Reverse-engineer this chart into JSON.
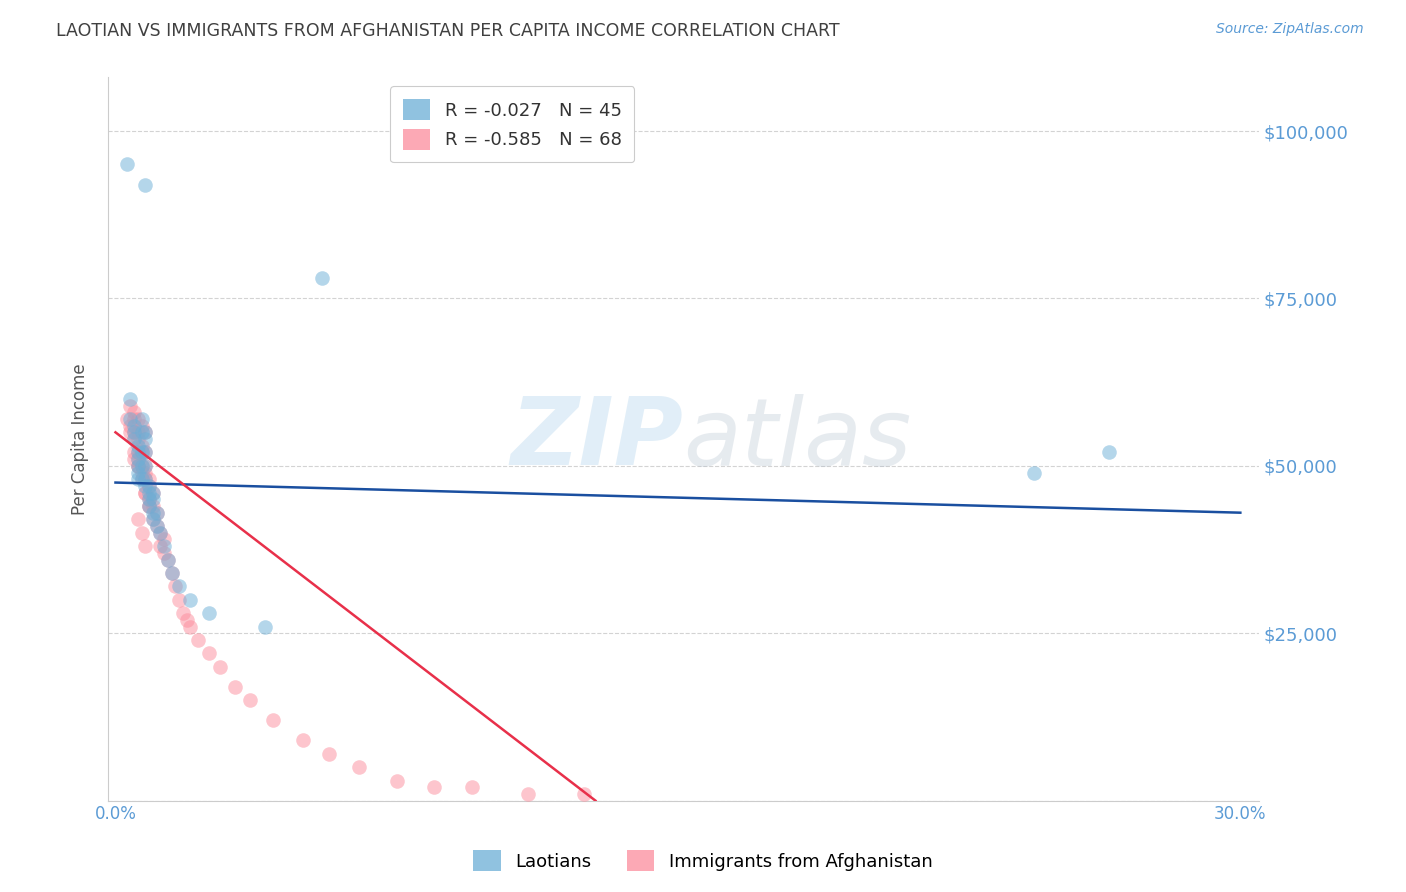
{
  "title": "LAOTIAN VS IMMIGRANTS FROM AFGHANISTAN PER CAPITA INCOME CORRELATION CHART",
  "source": "Source: ZipAtlas.com",
  "ylabel": "Per Capita Income",
  "xlim": [
    -0.002,
    0.305
  ],
  "ylim": [
    0,
    108000
  ],
  "yticks": [
    0,
    25000,
    50000,
    75000,
    100000
  ],
  "ytick_labels": [
    "",
    "$25,000",
    "$50,000",
    "$75,000",
    "$100,000"
  ],
  "xtick_positions": [
    0.0,
    0.3
  ],
  "xtick_labels": [
    "0.0%",
    "30.0%"
  ],
  "legend_labels": [
    "Laotians",
    "Immigrants from Afghanistan"
  ],
  "watermark_zip": "ZIP",
  "watermark_atlas": "atlas",
  "blue_color": "#6baed6",
  "pink_color": "#fc8d9c",
  "blue_line_color": "#1a4fa0",
  "pink_line_color": "#e8304a",
  "background_color": "#ffffff",
  "grid_color": "#c8c8c8",
  "axis_color": "#5b9bd5",
  "title_color": "#404040",
  "scatter_alpha": 0.5,
  "scatter_size": 110,
  "laotian_x": [
    0.003,
    0.008,
    0.004,
    0.004,
    0.005,
    0.005,
    0.005,
    0.006,
    0.006,
    0.006,
    0.006,
    0.006,
    0.006,
    0.007,
    0.007,
    0.007,
    0.007,
    0.007,
    0.008,
    0.008,
    0.008,
    0.008,
    0.008,
    0.008,
    0.009,
    0.009,
    0.009,
    0.009,
    0.01,
    0.01,
    0.01,
    0.01,
    0.011,
    0.011,
    0.012,
    0.013,
    0.014,
    0.015,
    0.017,
    0.02,
    0.025,
    0.04,
    0.055,
    0.245,
    0.265
  ],
  "laotian_y": [
    95000,
    92000,
    60000,
    57000,
    56000,
    55000,
    54000,
    53000,
    52000,
    51000,
    50000,
    49000,
    48000,
    57000,
    55000,
    52000,
    50000,
    48000,
    55000,
    54000,
    52000,
    50000,
    48000,
    47000,
    47000,
    46000,
    45000,
    44000,
    46000,
    45000,
    43000,
    42000,
    43000,
    41000,
    40000,
    38000,
    36000,
    34000,
    32000,
    30000,
    28000,
    26000,
    78000,
    49000,
    52000
  ],
  "afghan_x": [
    0.003,
    0.004,
    0.004,
    0.005,
    0.005,
    0.005,
    0.005,
    0.006,
    0.006,
    0.006,
    0.006,
    0.006,
    0.007,
    0.007,
    0.007,
    0.007,
    0.008,
    0.008,
    0.008,
    0.008,
    0.008,
    0.009,
    0.009,
    0.009,
    0.009,
    0.01,
    0.01,
    0.01,
    0.011,
    0.011,
    0.012,
    0.012,
    0.013,
    0.013,
    0.014,
    0.015,
    0.016,
    0.017,
    0.018,
    0.019,
    0.02,
    0.022,
    0.025,
    0.028,
    0.032,
    0.036,
    0.042,
    0.05,
    0.057,
    0.065,
    0.075,
    0.085,
    0.095,
    0.11,
    0.125,
    0.004,
    0.005,
    0.006,
    0.007,
    0.008,
    0.005,
    0.006,
    0.007,
    0.008,
    0.009,
    0.006,
    0.007,
    0.008
  ],
  "afghan_y": [
    57000,
    56000,
    55000,
    57000,
    55000,
    54000,
    52000,
    55000,
    54000,
    52000,
    51000,
    50000,
    53000,
    52000,
    50000,
    49000,
    52000,
    50000,
    49000,
    48000,
    46000,
    48000,
    47000,
    45000,
    44000,
    46000,
    44000,
    42000,
    43000,
    41000,
    40000,
    38000,
    39000,
    37000,
    36000,
    34000,
    32000,
    30000,
    28000,
    27000,
    26000,
    24000,
    22000,
    20000,
    17000,
    15000,
    12000,
    9000,
    7000,
    5000,
    3000,
    2000,
    2000,
    1000,
    1000,
    59000,
    58000,
    57000,
    56000,
    55000,
    51000,
    50000,
    48000,
    46000,
    44000,
    42000,
    40000,
    38000
  ],
  "blue_trend_x": [
    0.0,
    0.3
  ],
  "blue_trend_y": [
    47500,
    43000
  ],
  "pink_trend_x": [
    0.0,
    0.128
  ],
  "pink_trend_y": [
    55000,
    0
  ]
}
